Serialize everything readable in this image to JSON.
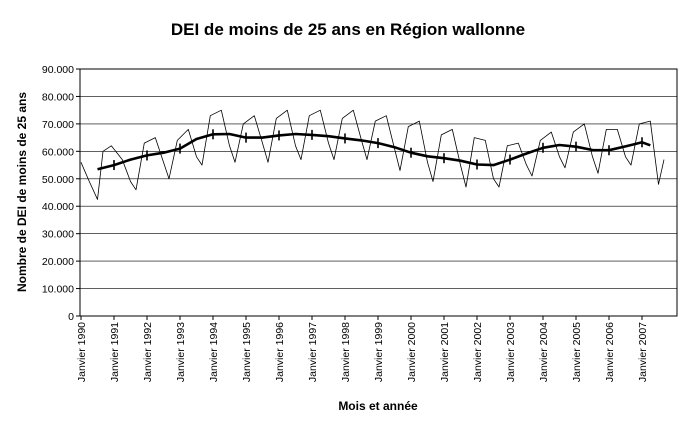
{
  "chart_data": {
    "type": "line",
    "title": "DEI de moins de 25 ans en Région wallonne",
    "xlabel": "Mois et année",
    "ylabel": "Nombre de DEI de moins de 25 ans",
    "ylim": [
      0,
      90000
    ],
    "y_ticks": [
      "0",
      "10.000",
      "20.000",
      "30.000",
      "40.000",
      "50.000",
      "60.000",
      "70.000",
      "80.000",
      "90.000"
    ],
    "x_ticks": [
      "Janvier 1990",
      "Janvier 1991",
      "Janvier 1992",
      "Janvier 1993",
      "Janvier 1994",
      "Janvier 1995",
      "Janvier 1996",
      "Janvier 1997",
      "Janvier 1998",
      "Janvier 1999",
      "Janvier 2000",
      "Janvier 2001",
      "Janvier 2002",
      "Janvier 2003",
      "Janvier 2004",
      "Janvier 2005",
      "Janvier 2006",
      "Janvier 2007"
    ],
    "xlim": [
      "1990-01",
      "2007-09"
    ],
    "grid": "horizontal",
    "series": [
      {
        "role": "monthly",
        "x": [
          "1990-01",
          "1990-04",
          "1990-07",
          "1990-09",
          "1990-12",
          "1991-04",
          "1991-07",
          "1991-09",
          "1991-12",
          "1992-04",
          "1992-07",
          "1992-09",
          "1992-12",
          "1993-04",
          "1993-07",
          "1993-09",
          "1993-12",
          "1994-04",
          "1994-07",
          "1994-09",
          "1994-12",
          "1995-04",
          "1995-07",
          "1995-09",
          "1995-12",
          "1996-04",
          "1996-07",
          "1996-09",
          "1996-12",
          "1997-04",
          "1997-07",
          "1997-09",
          "1997-12",
          "1998-04",
          "1998-07",
          "1998-09",
          "1998-12",
          "1999-04",
          "1999-07",
          "1999-09",
          "1999-12",
          "2000-04",
          "2000-07",
          "2000-09",
          "2000-12",
          "2001-04",
          "2001-07",
          "2001-09",
          "2001-12",
          "2002-04",
          "2002-07",
          "2002-09",
          "2002-12",
          "2003-04",
          "2003-07",
          "2003-09",
          "2003-12",
          "2004-04",
          "2004-07",
          "2004-09",
          "2004-12",
          "2005-04",
          "2005-07",
          "2005-09",
          "2005-12",
          "2006-04",
          "2006-07",
          "2006-09",
          "2006-12",
          "2007-04",
          "2007-07",
          "2007-09"
        ],
        "values": [
          56000,
          49000,
          42500,
          60000,
          62000,
          57000,
          49000,
          46000,
          63000,
          65000,
          56000,
          50000,
          64000,
          68000,
          58000,
          55000,
          73000,
          75000,
          62000,
          56000,
          70000,
          73000,
          63000,
          56000,
          72000,
          75000,
          62000,
          57000,
          73000,
          75000,
          63000,
          57000,
          72000,
          75000,
          64000,
          57000,
          71000,
          73000,
          61000,
          53000,
          69000,
          71000,
          56000,
          49000,
          66000,
          68000,
          55000,
          47000,
          65000,
          64000,
          50000,
          47000,
          62000,
          63000,
          55000,
          51000,
          64000,
          67000,
          58000,
          54000,
          67000,
          70000,
          58000,
          52000,
          68000,
          68000,
          58000,
          55000,
          70000,
          71000,
          48000,
          57000
        ]
      },
      {
        "role": "trend",
        "x": [
          "1990-07",
          "1991-01",
          "1991-07",
          "1992-01",
          "1992-07",
          "1993-01",
          "1993-07",
          "1994-01",
          "1994-07",
          "1995-01",
          "1995-07",
          "1996-01",
          "1996-07",
          "1997-01",
          "1997-07",
          "1998-01",
          "1998-07",
          "1999-01",
          "1999-07",
          "2000-01",
          "2000-07",
          "2001-01",
          "2001-07",
          "2002-01",
          "2002-07",
          "2003-01",
          "2003-07",
          "2004-01",
          "2004-07",
          "2005-01",
          "2005-07",
          "2006-01",
          "2006-07",
          "2007-01",
          "2007-04"
        ],
        "values": [
          53500,
          55000,
          57000,
          58500,
          59500,
          61000,
          64500,
          66200,
          66300,
          65000,
          65000,
          65800,
          66300,
          66000,
          65500,
          64700,
          64000,
          63000,
          61500,
          59500,
          58200,
          57500,
          56600,
          55200,
          55000,
          57000,
          59200,
          61300,
          62300,
          61700,
          60500,
          60400,
          61800,
          63300,
          62200
        ]
      }
    ]
  }
}
